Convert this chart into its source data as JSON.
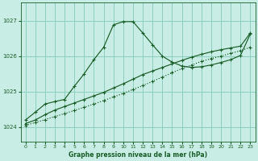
{
  "title": "Graphe pression niveau de la mer (hPa)",
  "bg_color": "#c8ede4",
  "grid_color": "#8ecfbe",
  "line_color": "#1a5c2a",
  "x_ticks": [
    0,
    1,
    2,
    3,
    4,
    5,
    6,
    7,
    8,
    9,
    10,
    11,
    12,
    13,
    14,
    15,
    16,
    17,
    18,
    19,
    20,
    21,
    22,
    23
  ],
  "ylim": [
    1023.6,
    1027.5
  ],
  "yticks": [
    1024,
    1025,
    1026,
    1027
  ],
  "series1": {
    "x": [
      0,
      1,
      2,
      3,
      4,
      5,
      6,
      7,
      8,
      9,
      10,
      11,
      12,
      13,
      14,
      15,
      16,
      17,
      18,
      19,
      20,
      21,
      22,
      23
    ],
    "y": [
      1024.05,
      1024.13,
      1024.21,
      1024.3,
      1024.38,
      1024.47,
      1024.56,
      1024.65,
      1024.75,
      1024.85,
      1024.95,
      1025.06,
      1025.17,
      1025.29,
      1025.41,
      1025.53,
      1025.65,
      1025.75,
      1025.85,
      1025.93,
      1026.0,
      1026.08,
      1026.15,
      1026.25
    ]
  },
  "series2": {
    "x": [
      0,
      1,
      2,
      3,
      4,
      5,
      6,
      7,
      8,
      9,
      10,
      11,
      12,
      13,
      14,
      15,
      16,
      17,
      18,
      19,
      20,
      21,
      22,
      23
    ],
    "y": [
      1024.1,
      1024.2,
      1024.35,
      1024.48,
      1024.58,
      1024.68,
      1024.78,
      1024.88,
      1024.98,
      1025.1,
      1025.22,
      1025.35,
      1025.48,
      1025.58,
      1025.68,
      1025.78,
      1025.88,
      1025.97,
      1026.05,
      1026.12,
      1026.18,
      1026.23,
      1026.28,
      1026.65
    ]
  },
  "series3": {
    "x": [
      0,
      1,
      2,
      3,
      4,
      5,
      6,
      7,
      8,
      9,
      10,
      11,
      12,
      13,
      14,
      15,
      16,
      17,
      18,
      19,
      20,
      21,
      22,
      23
    ],
    "y": [
      1024.2,
      1024.42,
      1024.65,
      1024.72,
      1024.78,
      1025.15,
      1025.5,
      1025.9,
      1026.25,
      1026.88,
      1026.97,
      1026.97,
      1026.65,
      1026.32,
      1026.0,
      1025.83,
      1025.72,
      1025.68,
      1025.7,
      1025.75,
      1025.82,
      1025.9,
      1026.02,
      1026.62
    ]
  }
}
